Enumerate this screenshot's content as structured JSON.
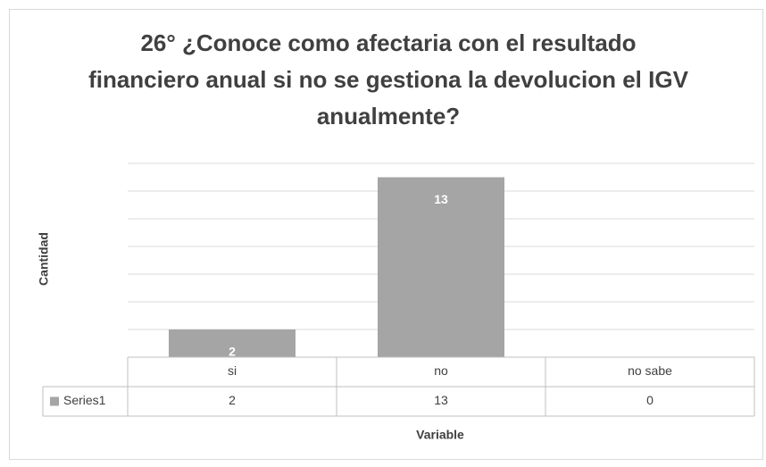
{
  "chart_data": {
    "type": "bar",
    "title": "26° ¿Conoce como afectaria con el resultado financiero anual si no se gestiona la devolucion el IGV anualmente?",
    "x_label": "Variable",
    "y_label": "Cantidad",
    "categories": [
      "si",
      "no",
      "no sabe"
    ],
    "series": [
      {
        "name": "Series1",
        "color": "#a5a5a5",
        "values": [
          2,
          13,
          0
        ]
      }
    ],
    "ylim": [
      0,
      14
    ],
    "yticks": [
      0,
      2,
      4,
      6,
      8,
      10,
      12,
      14
    ],
    "grid": true,
    "data_labels": true,
    "data_table": true
  }
}
